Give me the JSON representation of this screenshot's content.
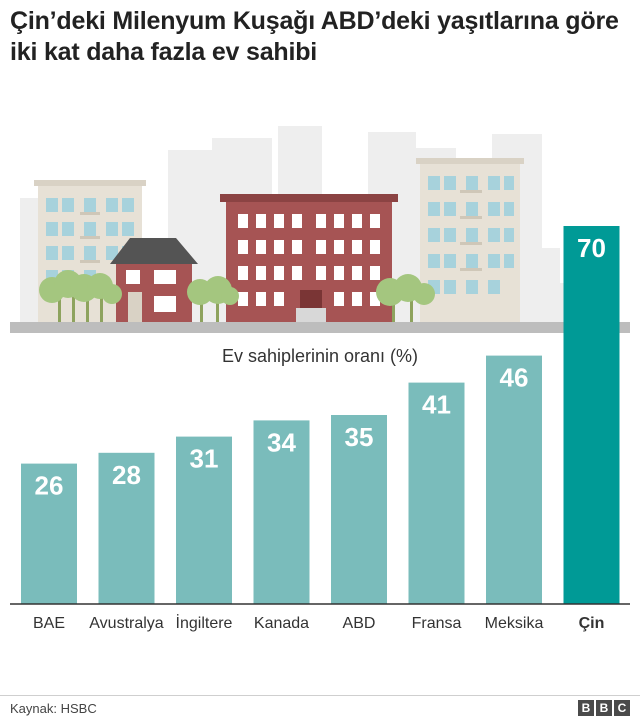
{
  "title": "Çin’deki Milenyum Kuşağı ABD’deki yaşıtlarına göre iki kat daha fazla ev sahibi",
  "source": "Kaynak: HSBC",
  "logo": [
    "B",
    "B",
    "C"
  ],
  "colors": {
    "bar": "#7abcbb",
    "highlight": "#009a96",
    "label": "#ffffff",
    "axis": "#333333"
  },
  "chart_data": {
    "type": "bar",
    "title": "Ev sahiplerinin oranı (%)",
    "categories": [
      "BAE",
      "Avustralya",
      "İngiltere",
      "Kanada",
      "ABD",
      "Fransa",
      "Meksika",
      "Çin"
    ],
    "values": [
      26,
      28,
      31,
      34,
      35,
      41,
      46,
      70
    ],
    "highlight": "Çin",
    "ylim": [
      0,
      70
    ],
    "grid": false,
    "legend": "none"
  }
}
